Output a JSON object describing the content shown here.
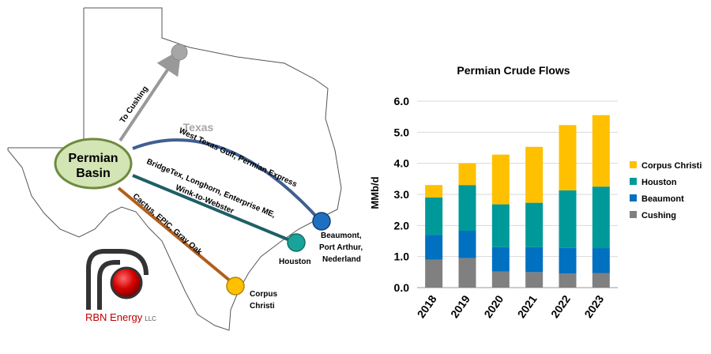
{
  "map": {
    "state_label": "Texas",
    "origin": {
      "line1": "Permian",
      "line2": "Basin"
    },
    "routes": [
      {
        "label": "To Cushing",
        "color": "#999999"
      },
      {
        "label": "West Texas Gulf, Permian Express",
        "color": "#3F5F8F"
      },
      {
        "label_line1": "BridgeTex, Longhorn, Enterprise ME,",
        "label_line2": "Wink-to-Webster",
        "color": "#1F5F66"
      },
      {
        "label": "Cactus, EPIC, Gray Oak",
        "color": "#B25F1A"
      }
    ],
    "destinations": {
      "cushing": {
        "color": "#A6A6A6"
      },
      "beaumont": {
        "lines": [
          "Beaumont,",
          "Port Arthur,",
          "Nederland"
        ],
        "color": "#1F6FC0"
      },
      "houston": {
        "label": "Houston",
        "color": "#1AA39A"
      },
      "corpus": {
        "lines": [
          "Corpus",
          "Christi"
        ],
        "color": "#FFC000"
      }
    }
  },
  "logo": {
    "company": "RBN Energy",
    "suffix": "LLC"
  },
  "colors": {
    "corpus_christi": "#FFC000",
    "houston": "#009999",
    "beaumont": "#0070C0",
    "cushing": "#808080"
  },
  "chart_data": {
    "type": "bar",
    "stacked": true,
    "title": "Permian Crude Flows",
    "ylabel": "MMb/d",
    "xlabel": "",
    "categories": [
      "2018",
      "2019",
      "2020",
      "2021",
      "2022",
      "2023"
    ],
    "y_tick_labels": [
      "0.0",
      "1.0",
      "2.0",
      "3.0",
      "4.0",
      "5.0",
      "6.0"
    ],
    "ylim": [
      0,
      6
    ],
    "grid": true,
    "legend_position": "right",
    "series": [
      {
        "name": "Cushing",
        "color": "#808080",
        "values": [
          0.9,
          0.95,
          0.52,
          0.5,
          0.45,
          0.47
        ]
      },
      {
        "name": "Beaumont",
        "color": "#0070C0",
        "values": [
          0.8,
          0.88,
          0.78,
          0.8,
          0.83,
          0.8
        ]
      },
      {
        "name": "Houston",
        "color": "#009999",
        "values": [
          1.2,
          1.47,
          1.38,
          1.43,
          1.85,
          1.98
        ]
      },
      {
        "name": "Corpus Christi",
        "color": "#FFC000",
        "values": [
          0.4,
          0.7,
          1.6,
          1.8,
          2.1,
          2.3
        ]
      }
    ],
    "legend_order": [
      "Corpus Christi",
      "Houston",
      "Beaumont",
      "Cushing"
    ]
  }
}
